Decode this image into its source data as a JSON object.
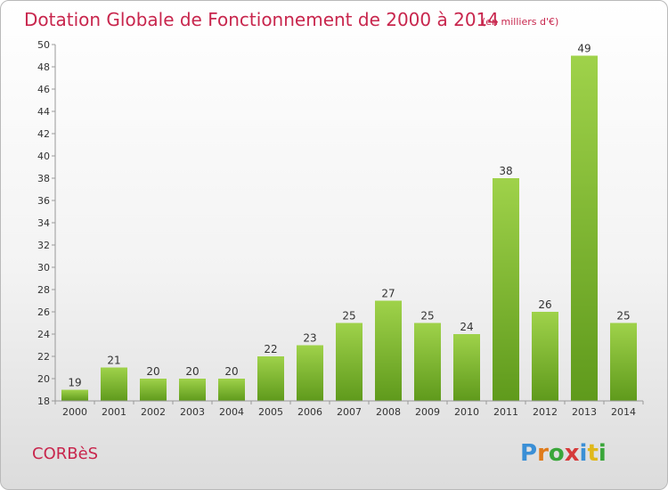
{
  "chart_data": {
    "type": "bar",
    "title": "Dotation Globale de Fonctionnement de 2000 à 2014",
    "subtitle": "(en milliers d'€)",
    "categories": [
      "2000",
      "2001",
      "2002",
      "2003",
      "2004",
      "2005",
      "2006",
      "2007",
      "2008",
      "2009",
      "2010",
      "2011",
      "2012",
      "2013",
      "2014"
    ],
    "values": [
      19,
      21,
      20,
      20,
      20,
      22,
      23,
      25,
      27,
      25,
      24,
      38,
      26,
      49,
      25
    ],
    "data_labels": [
      "19",
      "21",
      "20",
      "20",
      "20",
      "22",
      "23",
      "25",
      "27",
      "25",
      "24",
      "38",
      "26",
      "49",
      "25"
    ],
    "ylim": [
      18,
      50
    ],
    "yticks": [
      "18",
      "20",
      "22",
      "24",
      "26",
      "28",
      "30",
      "32",
      "34",
      "36",
      "38",
      "40",
      "42",
      "44",
      "46",
      "48",
      "50"
    ],
    "xlabel": "",
    "ylabel": "",
    "grid": false,
    "bar_color": "#8cc63f",
    "title_color": "#c8264d"
  },
  "footer": {
    "commune": "CORBèS",
    "brand_letters": [
      {
        "ch": "P",
        "color": "#3a8fd6"
      },
      {
        "ch": "r",
        "color": "#e07b1a"
      },
      {
        "ch": "o",
        "color": "#3aa63a"
      },
      {
        "ch": "x",
        "color": "#d63a3a"
      },
      {
        "ch": "i",
        "color": "#3a8fd6"
      },
      {
        "ch": "t",
        "color": "#e0b81a"
      },
      {
        "ch": "i",
        "color": "#3aa63a"
      }
    ]
  }
}
